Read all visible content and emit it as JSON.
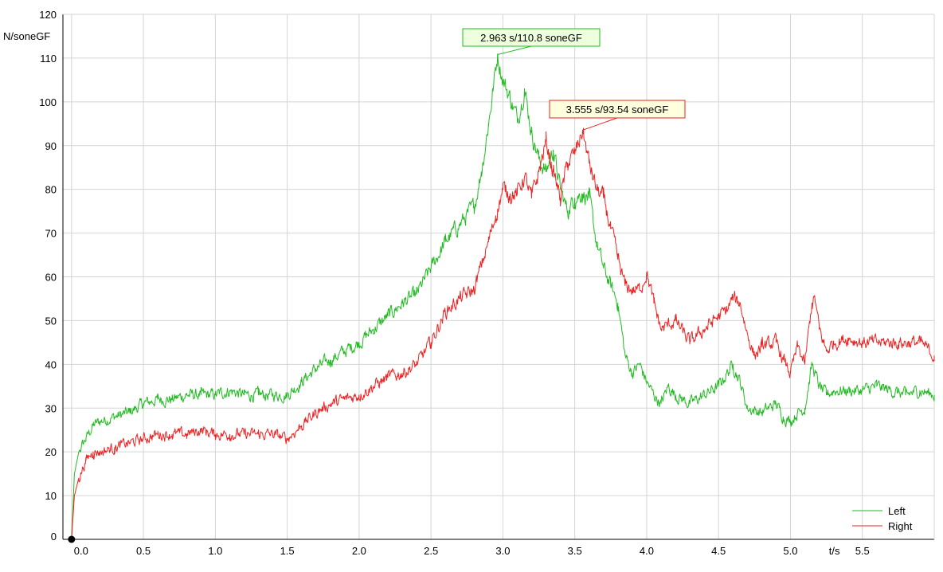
{
  "chart_data": {
    "type": "line",
    "title": "",
    "ylabel": "N/soneGF",
    "xlabel": "t/s",
    "xlim": [
      -0.06,
      6.0
    ],
    "ylim": [
      0,
      120
    ],
    "x_ticks": [
      0.0,
      0.5,
      1.0,
      1.5,
      2.0,
      2.5,
      3.0,
      3.5,
      4.0,
      4.5,
      5.0,
      5.5
    ],
    "x_tick_labels": [
      "0.0",
      "0.5",
      "1.0",
      "1.5",
      "2.0",
      "2.5",
      "3.0",
      "3.5",
      "4.0",
      "4.5",
      "5.0",
      "5.5"
    ],
    "y_ticks": [
      0,
      10,
      20,
      30,
      40,
      50,
      60,
      70,
      80,
      90,
      100,
      110,
      120
    ],
    "y_tick_labels": [
      "0",
      "10",
      "20",
      "30",
      "40",
      "50",
      "60",
      "70",
      "80",
      "90",
      "100",
      "110",
      "120"
    ],
    "grid": true,
    "legend_position": "bottom-right",
    "series": [
      {
        "name": "Left",
        "color": "#22bb22",
        "x": [
          0.0,
          0.02,
          0.05,
          0.1,
          0.15,
          0.2,
          0.3,
          0.4,
          0.5,
          0.6,
          0.7,
          0.8,
          0.9,
          1.0,
          1.1,
          1.2,
          1.3,
          1.4,
          1.5,
          1.6,
          1.7,
          1.8,
          1.9,
          2.0,
          2.1,
          2.2,
          2.3,
          2.4,
          2.5,
          2.6,
          2.7,
          2.8,
          2.85,
          2.9,
          2.963,
          3.0,
          3.05,
          3.1,
          3.15,
          3.2,
          3.25,
          3.3,
          3.35,
          3.4,
          3.45,
          3.5,
          3.55,
          3.6,
          3.65,
          3.7,
          3.75,
          3.8,
          3.85,
          3.9,
          3.95,
          4.0,
          4.05,
          4.1,
          4.15,
          4.2,
          4.3,
          4.4,
          4.5,
          4.6,
          4.65,
          4.7,
          4.8,
          4.9,
          4.95,
          5.0,
          5.05,
          5.1,
          5.15,
          5.2,
          5.25,
          5.3,
          5.4,
          5.5,
          5.6,
          5.7,
          5.8,
          5.9,
          6.0
        ],
        "y": [
          0,
          15,
          20,
          23,
          26,
          27,
          28,
          29,
          31,
          32,
          32,
          33,
          33,
          33,
          34,
          33,
          33,
          33,
          33,
          36,
          39,
          41,
          43,
          45,
          48,
          51,
          54,
          56,
          62,
          68,
          72,
          76,
          84,
          95,
          110.8,
          105,
          101,
          96,
          103,
          93,
          87,
          84,
          89,
          80,
          75,
          78,
          79,
          78,
          68,
          62,
          58,
          54,
          42,
          38,
          40,
          36,
          33,
          31,
          35,
          33,
          31,
          33,
          35,
          40,
          36,
          30,
          29,
          31,
          28,
          27,
          29,
          30,
          40,
          35,
          33,
          34,
          34,
          34,
          35,
          34,
          33,
          34,
          33
        ]
      },
      {
        "name": "Right",
        "color": "#ee2222",
        "x": [
          0.0,
          0.02,
          0.05,
          0.1,
          0.15,
          0.2,
          0.3,
          0.4,
          0.5,
          0.6,
          0.7,
          0.8,
          0.9,
          1.0,
          1.1,
          1.2,
          1.3,
          1.4,
          1.5,
          1.6,
          1.7,
          1.8,
          1.9,
          2.0,
          2.1,
          2.2,
          2.3,
          2.4,
          2.5,
          2.6,
          2.7,
          2.8,
          2.9,
          2.95,
          3.0,
          3.05,
          3.1,
          3.15,
          3.2,
          3.25,
          3.3,
          3.35,
          3.4,
          3.45,
          3.5,
          3.555,
          3.6,
          3.65,
          3.7,
          3.75,
          3.8,
          3.85,
          3.9,
          3.95,
          4.0,
          4.05,
          4.1,
          4.2,
          4.3,
          4.4,
          4.5,
          4.55,
          4.6,
          4.65,
          4.7,
          4.75,
          4.8,
          4.9,
          4.95,
          5.0,
          5.05,
          5.1,
          5.15,
          5.17,
          5.2,
          5.25,
          5.3,
          5.4,
          5.5,
          5.6,
          5.7,
          5.8,
          5.9,
          6.0
        ],
        "y": [
          0,
          10,
          14,
          18,
          20,
          20,
          21,
          22,
          23,
          24,
          24,
          24,
          25,
          24,
          24,
          24,
          24,
          24,
          23,
          26,
          29,
          31,
          32,
          33,
          35,
          37,
          38,
          40,
          45,
          52,
          55,
          57,
          68,
          74,
          80,
          79,
          79,
          83,
          78,
          84,
          91,
          84,
          78,
          86,
          88,
          93.54,
          86,
          80,
          78,
          71,
          64,
          58,
          57,
          57,
          61,
          54,
          48,
          50,
          45,
          48,
          51,
          52,
          55,
          54,
          47,
          42,
          44,
          45,
          41,
          38,
          44,
          40,
          54,
          55,
          48,
          43,
          45,
          46,
          45,
          45,
          45,
          45,
          45,
          42
        ]
      }
    ],
    "annotations": [
      {
        "series": "Left",
        "x": 2.963,
        "y": 110.8,
        "text": "2.963 s/110.8 soneGF"
      },
      {
        "series": "Right",
        "x": 3.555,
        "y": 93.54,
        "text": "3.555 s/93.54 soneGF"
      }
    ]
  }
}
